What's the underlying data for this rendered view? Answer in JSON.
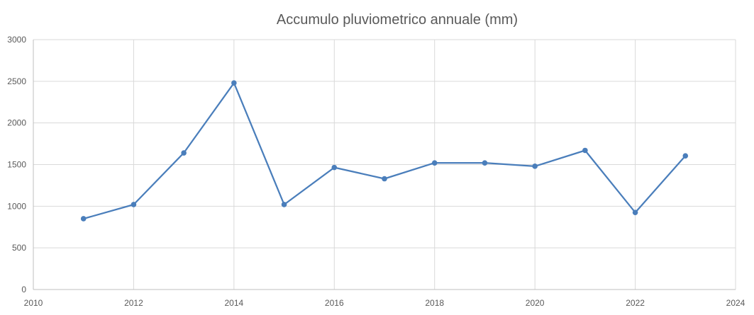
{
  "chart_data": {
    "type": "scatter",
    "title": "Accumulo pluviometrico annuale (mm)",
    "xlabel": "",
    "ylabel": "",
    "xlim": [
      2010,
      2024
    ],
    "ylim": [
      0,
      3000
    ],
    "x_ticks": [
      "2010",
      "2012",
      "2014",
      "2016",
      "2018",
      "2020",
      "2022",
      "2024"
    ],
    "y_ticks": [
      "0",
      "500",
      "1000",
      "1500",
      "2000",
      "2500",
      "3000"
    ],
    "grid": true,
    "legend": "none",
    "line_color": "#4a7ebb",
    "marker_color": "#4a7ebb",
    "series": [
      {
        "x": [
          2011,
          2012,
          2013,
          2014,
          2015,
          2016,
          2017,
          2018,
          2019,
          2020,
          2021,
          2022,
          2023
        ],
        "y": [
          850,
          1020,
          1640,
          2480,
          1020,
          1465,
          1330,
          1520,
          1520,
          1480,
          1670,
          925,
          1605
        ]
      }
    ]
  }
}
